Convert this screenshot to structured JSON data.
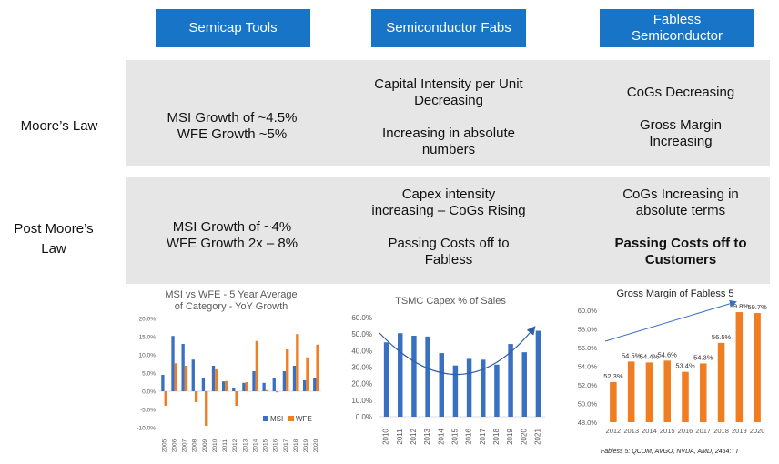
{
  "headers": [
    "Semicap Tools",
    "Semiconductor Fabs",
    "Fabless Semiconductor"
  ],
  "rows": [
    {
      "label": "Moore’s Law",
      "semicap": [
        "MSI Growth of ~4.5%",
        "WFE Growth ~5%"
      ],
      "fabs_p1": "Capital Intensity per Unit Decreasing",
      "fabs_p2": "Increasing in absolute numbers",
      "fabless_p1": "CoGs Decreasing",
      "fabless_p2": "Gross Margin Increasing"
    },
    {
      "label": "Post Moore’s Law",
      "semicap": [
        "MSI Growth of ~4%",
        "WFE Growth 2x – 8%"
      ],
      "fabs_p1": "Capex intensity increasing – CoGs Rising",
      "fabs_p2": "Passing Costs off to Fabless",
      "fabless_p1": "CoGs Increasing in absolute terms",
      "fabless_p2": "Passing Costs off to Customers"
    }
  ],
  "chart_data": [
    {
      "type": "bar",
      "title": "MSI vs WFE - 5 Year Average of Category - YoY Growth",
      "categories": [
        "2005",
        "2006",
        "2007",
        "2008",
        "2009",
        "2010",
        "2011",
        "2012",
        "2013",
        "2014",
        "2015",
        "2016",
        "2017",
        "2018",
        "2019",
        "2020"
      ],
      "series": [
        {
          "name": "MSI",
          "color": "#3a70c2",
          "values": [
            4.5,
            15.2,
            13.0,
            8.7,
            3.7,
            7.0,
            2.7,
            0.8,
            2.3,
            5.5,
            2.3,
            3.5,
            5.5,
            7.0,
            3.0,
            3.5
          ]
        },
        {
          "name": "WFE",
          "color": "#ef7d22",
          "values": [
            -4.0,
            7.7,
            7.0,
            -3.0,
            -9.5,
            6.0,
            2.8,
            -4.0,
            2.5,
            13.8,
            0.3,
            -0.3,
            11.5,
            15.7,
            9.3,
            12.8
          ]
        }
      ],
      "yticks": [
        "20.0%",
        "15.0%",
        "10.0%",
        "5.0%",
        "0.0%",
        "-5.0%",
        "-10.0%"
      ],
      "ylim": [
        -10,
        20
      ],
      "legend": "bottom-right"
    },
    {
      "type": "bar",
      "title": "TSMC Capex % of Sales",
      "categories": [
        "2010",
        "2011",
        "2012",
        "2013",
        "2014",
        "2015",
        "2016",
        "2017",
        "2018",
        "2019",
        "2020",
        "2021"
      ],
      "values": [
        45,
        50.5,
        49,
        48.5,
        38.5,
        31,
        35,
        34.5,
        31.5,
        44,
        39,
        52
      ],
      "color": "#3a70c2",
      "yticks": [
        "60.0%",
        "50.0%",
        "40.0%",
        "30.0%",
        "20.0%",
        "10.0%",
        "0.0%"
      ],
      "ylim": [
        0,
        60
      ]
    },
    {
      "type": "bar",
      "title": "Gross Margin of Fabless 5",
      "categories": [
        "2012",
        "2013",
        "2014",
        "2015",
        "2016",
        "2017",
        "2018",
        "2019",
        "2020"
      ],
      "values": [
        52.3,
        54.5,
        54.4,
        54.6,
        53.4,
        54.3,
        56.5,
        59.8,
        59.7
      ],
      "labels": [
        "52.3%",
        "54.5%",
        "54.4%",
        "54.6%",
        "53.4%",
        "54.3%",
        "56.5%",
        "59.8%",
        "59.7%"
      ],
      "color": "#ef7d22",
      "yticks": [
        "60.0%",
        "58.0%",
        "56.0%",
        "54.0%",
        "52.0%",
        "50.0%",
        "48.0%"
      ],
      "ylim": [
        48,
        60
      ],
      "footnote": "Fabless 5: QCOM, AVGO, NVDA, AMD, 2454:TT"
    }
  ]
}
